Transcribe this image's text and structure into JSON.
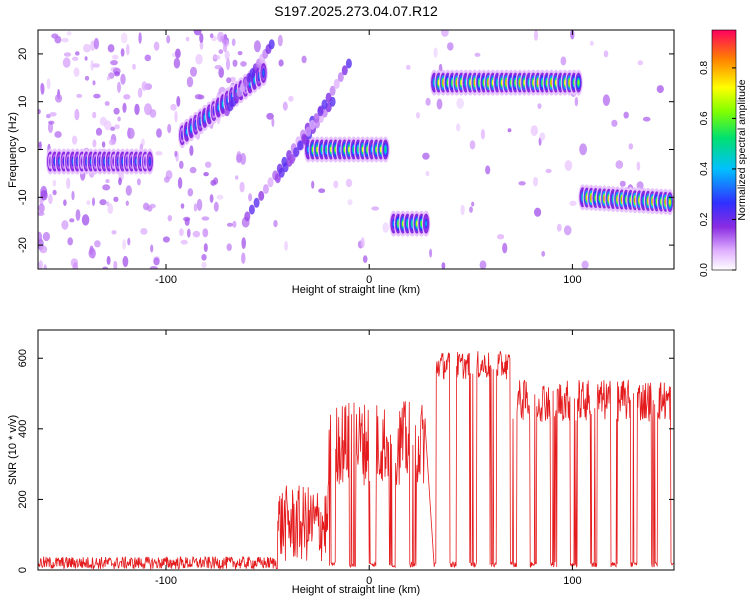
{
  "title": "S197.2025.273.04.07.R12",
  "colors": {
    "snr_line": "#e41a1c",
    "axis": "#000000"
  },
  "chart_data": [
    {
      "type": "heatmap",
      "title": "S197.2025.273.04.07.R12",
      "xlabel": "Height of straight line (km)",
      "ylabel": "Frequency (Hz)",
      "xlim": [
        -163,
        150
      ],
      "ylim": [
        -25,
        25
      ],
      "x_ticks": [
        -100,
        0,
        100
      ],
      "y_ticks": [
        -20,
        -10,
        0,
        10,
        20
      ],
      "colorbar": {
        "label": "Normalized spectral amplitude",
        "range": [
          0,
          0.95
        ],
        "ticks": [
          "0.0",
          "0.2",
          "0.4",
          "0.6",
          "0.8"
        ],
        "tick_values": [
          0,
          0.2,
          0.4,
          0.6,
          0.8
        ]
      },
      "ridges": [
        {
          "x0": -157,
          "x1": -108,
          "freq": -2.5,
          "amp": 0.35
        },
        {
          "x0": -92,
          "x1": -52,
          "freq0": 3,
          "freq1": 16,
          "amp": 0.45
        },
        {
          "x0": -30,
          "x1": 8,
          "freq": 0,
          "amp": 0.75
        },
        {
          "x0": 12,
          "x1": 28,
          "freq": -15.5,
          "amp": 0.7
        },
        {
          "x0": 32,
          "x1": 103,
          "freq": 14,
          "amp": 0.85
        },
        {
          "x0": 105,
          "x1": 148,
          "freq0": -10,
          "freq1": -11,
          "amp": 0.9
        }
      ]
    },
    {
      "type": "line",
      "xlabel": "Height of straight line (km)",
      "ylabel": "SNR (10 * v/v)",
      "xlim": [
        -163,
        150
      ],
      "ylim": [
        0,
        680
      ],
      "x_ticks": [
        -100,
        0,
        100
      ],
      "y_ticks": [
        0,
        200,
        400,
        600
      ],
      "series_name": "SNR",
      "segments": [
        {
          "x0": -163,
          "x1": -45,
          "level": 20,
          "noise": 18
        },
        {
          "x0": -45,
          "x1": -20,
          "level": 130,
          "noise": 110
        },
        {
          "x0": -20,
          "x1": 28,
          "level": 360,
          "noise": 120,
          "dropouts": true
        },
        {
          "x0": 32,
          "x1": 70,
          "level": 580,
          "noise": 40,
          "dropouts": true
        },
        {
          "x0": 70,
          "x1": 150,
          "level": 480,
          "noise": 60,
          "dropouts": true
        }
      ]
    }
  ]
}
